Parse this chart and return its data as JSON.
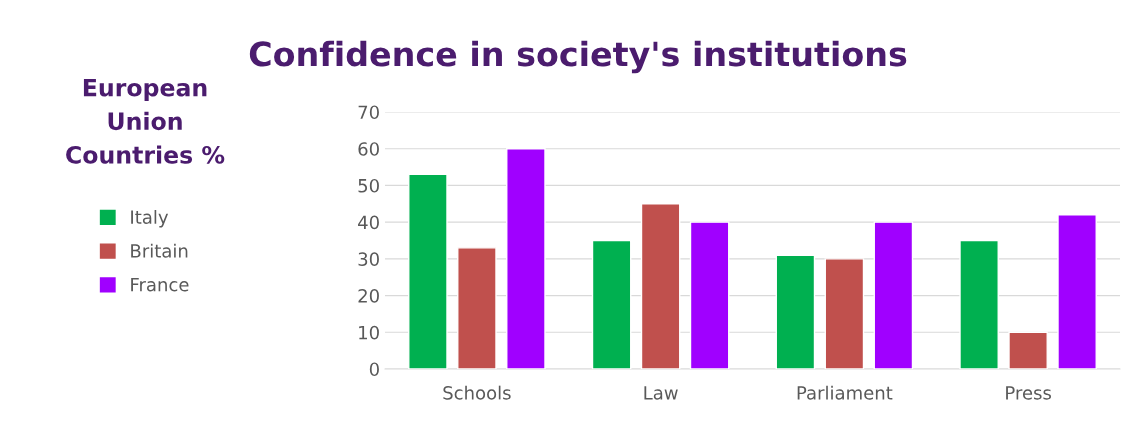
{
  "chart_data": {
    "type": "bar",
    "title": "Confidence in society's institutions",
    "legend_title": "European Union Countries %",
    "categories": [
      "Schools",
      "Law",
      "Parliament",
      "Press"
    ],
    "series": [
      {
        "name": "Italy",
        "color": "#00b050",
        "values": [
          53,
          35,
          31,
          35
        ]
      },
      {
        "name": "Britain",
        "color": "#c0504d",
        "values": [
          33,
          45,
          30,
          10
        ]
      },
      {
        "name": "France",
        "color": "#a000ff",
        "values": [
          60,
          40,
          40,
          42
        ]
      }
    ],
    "ylim": [
      0,
      70
    ],
    "yticks": [
      0,
      10,
      20,
      30,
      40,
      50,
      60,
      70
    ],
    "grid": "y",
    "legend": "left"
  }
}
